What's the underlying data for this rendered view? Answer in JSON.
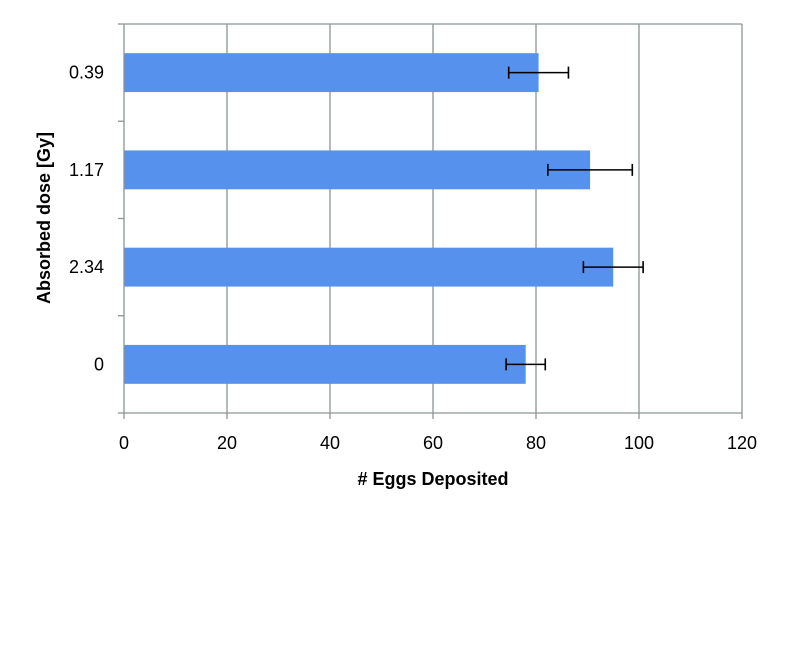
{
  "chart_data": {
    "type": "bar",
    "orientation": "horizontal",
    "title": "",
    "xlabel": "# Eggs Deposited",
    "ylabel": "Absorbed dose [Gy]",
    "categories": [
      "0.39",
      "1.17",
      "2.34",
      "0"
    ],
    "values": [
      80.5,
      90.5,
      95,
      78
    ],
    "errors": [
      5.8,
      8.2,
      5.8,
      3.8
    ],
    "xlim": [
      0,
      120
    ],
    "xticks": [
      "0",
      "20",
      "40",
      "60",
      "80",
      "100",
      "120"
    ],
    "grid": true,
    "legend": "none",
    "bar_color": "#5591ED",
    "error_color": "#000000",
    "grid_color": "#8C9494"
  }
}
